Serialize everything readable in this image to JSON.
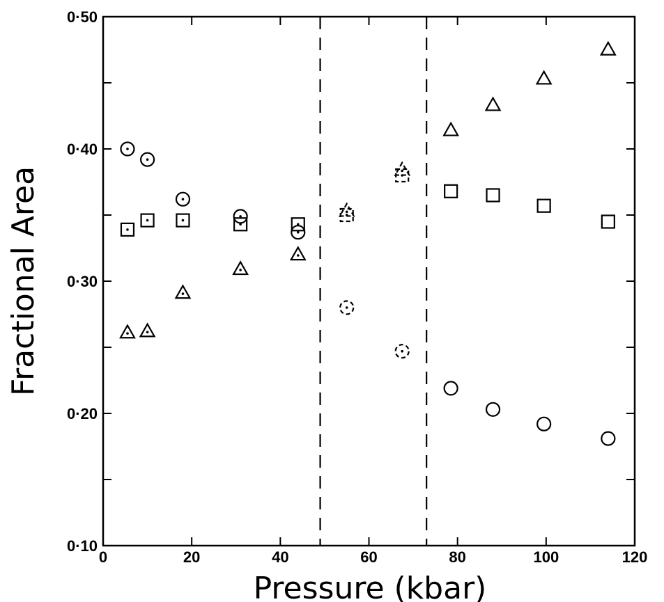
{
  "chart_data": {
    "type": "scatter",
    "title": "",
    "xlabel": "Pressure  (kbar)",
    "ylabel": "Fractional  Area",
    "xlim": [
      0,
      120
    ],
    "ylim": [
      0.1,
      0.5
    ],
    "x_ticks": [
      0,
      20,
      40,
      60,
      80,
      100,
      120
    ],
    "x_tick_labels": [
      "0",
      "20",
      "40",
      "60",
      "80",
      "100",
      "120"
    ],
    "y_ticks": [
      0.1,
      0.15,
      0.2,
      0.25,
      0.3,
      0.35,
      0.4,
      0.45,
      0.5
    ],
    "y_tick_labels": [
      "0·10",
      "",
      "0·20",
      "",
      "0·30",
      "",
      "0·40",
      "",
      "0·50"
    ],
    "grid": false,
    "legend": "none",
    "vertical_reference_lines": [
      49,
      73
    ],
    "series": [
      {
        "marker": "circle",
        "points": [
          {
            "x": 5.5,
            "y": 0.4,
            "dotted": true
          },
          {
            "x": 10,
            "y": 0.392,
            "dotted": true
          },
          {
            "x": 18,
            "y": 0.362,
            "dotted": true
          },
          {
            "x": 31,
            "y": 0.349,
            "dotted": true
          },
          {
            "x": 44,
            "y": 0.337,
            "dotted": true
          },
          {
            "x": 55,
            "y": 0.28,
            "dashed": true
          },
          {
            "x": 67.5,
            "y": 0.247,
            "dashed": true
          },
          {
            "x": 78.5,
            "y": 0.219
          },
          {
            "x": 88,
            "y": 0.203
          },
          {
            "x": 99.5,
            "y": 0.192
          },
          {
            "x": 114,
            "y": 0.181
          }
        ]
      },
      {
        "marker": "square",
        "points": [
          {
            "x": 5.5,
            "y": 0.339,
            "dotted": true
          },
          {
            "x": 10,
            "y": 0.346,
            "dotted": true
          },
          {
            "x": 18,
            "y": 0.346,
            "dotted": true
          },
          {
            "x": 31,
            "y": 0.343,
            "dotted": true
          },
          {
            "x": 44,
            "y": 0.343,
            "dotted": true
          },
          {
            "x": 55,
            "y": 0.35,
            "dashed": true
          },
          {
            "x": 67.5,
            "y": 0.38,
            "dashed": true
          },
          {
            "x": 78.5,
            "y": 0.368
          },
          {
            "x": 88,
            "y": 0.365
          },
          {
            "x": 99.5,
            "y": 0.357
          },
          {
            "x": 114,
            "y": 0.345
          }
        ]
      },
      {
        "marker": "triangle",
        "points": [
          {
            "x": 5.5,
            "y": 0.261,
            "dotted": true
          },
          {
            "x": 10,
            "y": 0.262,
            "dotted": true
          },
          {
            "x": 18,
            "y": 0.291,
            "dotted": true
          },
          {
            "x": 31,
            "y": 0.309,
            "dotted": true
          },
          {
            "x": 44,
            "y": 0.32,
            "dotted": true
          },
          {
            "x": 55,
            "y": 0.353,
            "dashed": true
          },
          {
            "x": 67.5,
            "y": 0.384,
            "dashed": true
          },
          {
            "x": 78.5,
            "y": 0.414
          },
          {
            "x": 88,
            "y": 0.433
          },
          {
            "x": 99.5,
            "y": 0.453
          },
          {
            "x": 114,
            "y": 0.475
          }
        ]
      }
    ]
  }
}
